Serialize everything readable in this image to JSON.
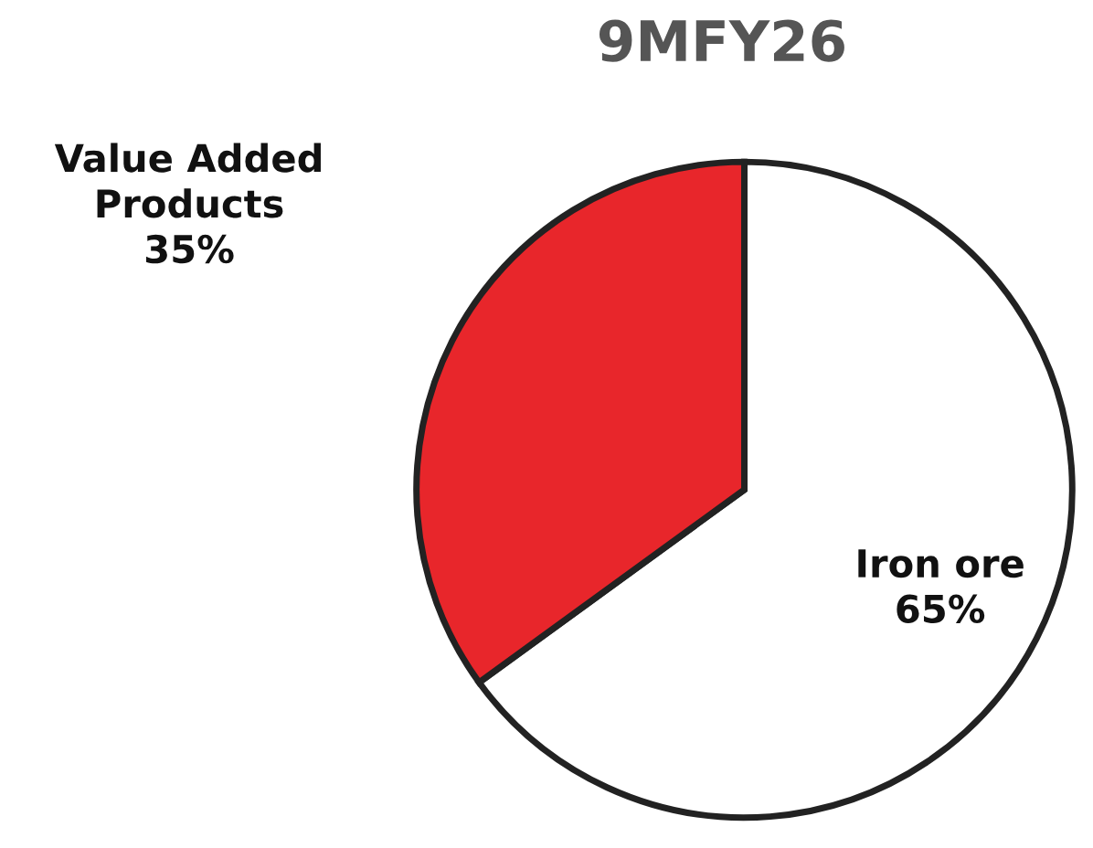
{
  "chart_data": {
    "type": "pie",
    "title": "9MFY26",
    "categories": [
      "Iron ore",
      "Value Added\nProducts"
    ],
    "values": [
      65,
      35
    ],
    "value_labels": [
      "65%",
      "35%"
    ],
    "colors": [
      "#ffffff",
      "#e8262b"
    ]
  }
}
